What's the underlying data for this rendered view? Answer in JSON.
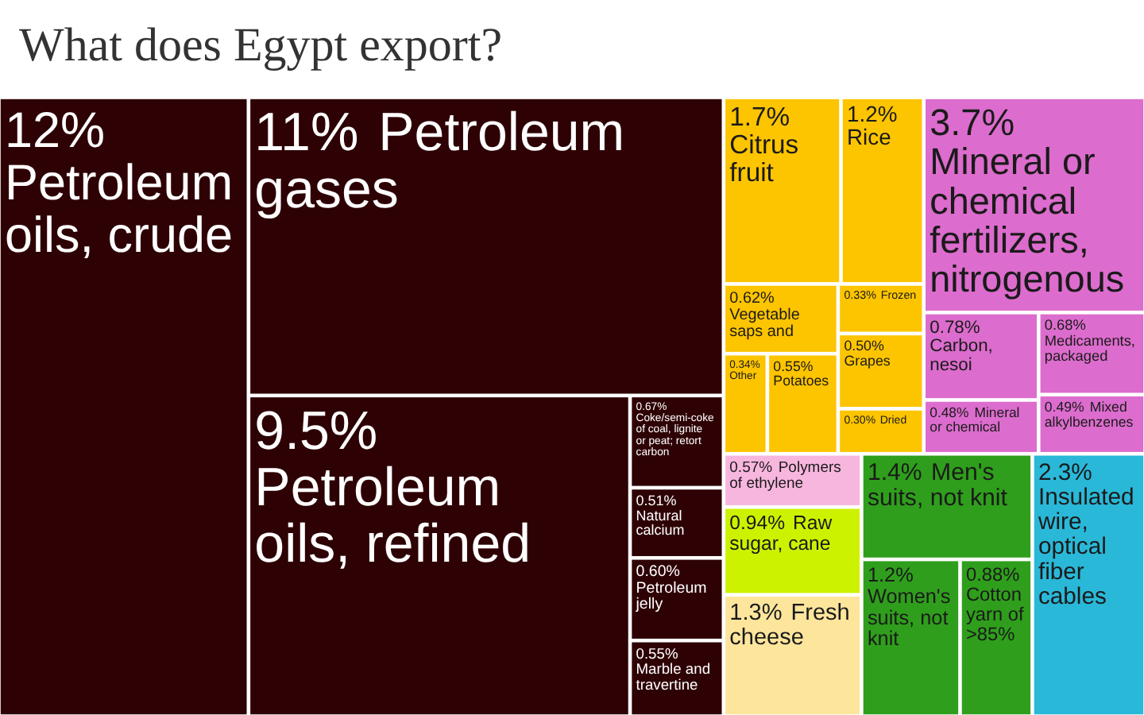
{
  "chart_data": {
    "type": "other",
    "title": "What does Egypt export?",
    "categories": [
      "Petroleum oils, crude",
      "Petroleum gases",
      "Petroleum oils, refined",
      "Coke/semi-coke of coal, lignite or peat; retort carbon",
      "Natural calcium",
      "Petroleum jelly",
      "Marble and travertine",
      "Citrus fruit",
      "Rice",
      "Vegetable saps and",
      "Other",
      "Potatoes",
      "Frozen",
      "Grapes",
      "Dried",
      "Mineral or chemical fertilizers, nitrogenous",
      "Carbon, nesoi",
      "Mineral or chemical",
      "Medicaments, packaged",
      "Mixed alkylbenzenes",
      "Polymers of ethylene",
      "Raw sugar, cane",
      "Fresh cheese",
      "Men's suits, not knit",
      "Women's suits, not knit",
      "Cotton yarn of >85%",
      "Insulated wire, optical fiber cables"
    ],
    "values": [
      12,
      11,
      9.5,
      0.67,
      0.51,
      0.6,
      0.55,
      1.7,
      1.2,
      0.62,
      0.34,
      0.55,
      0.33,
      0.5,
      0.3,
      3.7,
      0.78,
      0.48,
      0.68,
      0.49,
      0.57,
      0.94,
      1.3,
      1.4,
      1.2,
      0.88,
      2.3
    ],
    "value_labels": [
      "12%",
      "11%",
      "9.5%",
      "0.67%",
      "0.51%",
      "0.60%",
      "0.55%",
      "1.7%",
      "1.2%",
      "0.62%",
      "0.34%",
      "0.55%",
      "0.33%",
      "0.50%",
      "0.30%",
      "3.7%",
      "0.78%",
      "0.48%",
      "0.68%",
      "0.49%",
      "0.57%",
      "0.94%",
      "1.3%",
      "1.4%",
      "1.2%",
      "0.88%",
      "2.3%"
    ],
    "colors": [
      "#2e0205",
      "#2e0205",
      "#2e0205",
      "#2e0205",
      "#2e0205",
      "#2e0205",
      "#2e0205",
      "#fdc400",
      "#fdc400",
      "#fdc400",
      "#fdc400",
      "#fdc400",
      "#fdc400",
      "#fdc400",
      "#fdc400",
      "#dc6ccd",
      "#dc6ccd",
      "#dc6ccd",
      "#dc6ccd",
      "#dc6ccd",
      "#f7b6dd",
      "#cdf200",
      "#fde59c",
      "#2f9e1c",
      "#2f9e1c",
      "#2f9e1c",
      "#2ab8d8"
    ]
  }
}
